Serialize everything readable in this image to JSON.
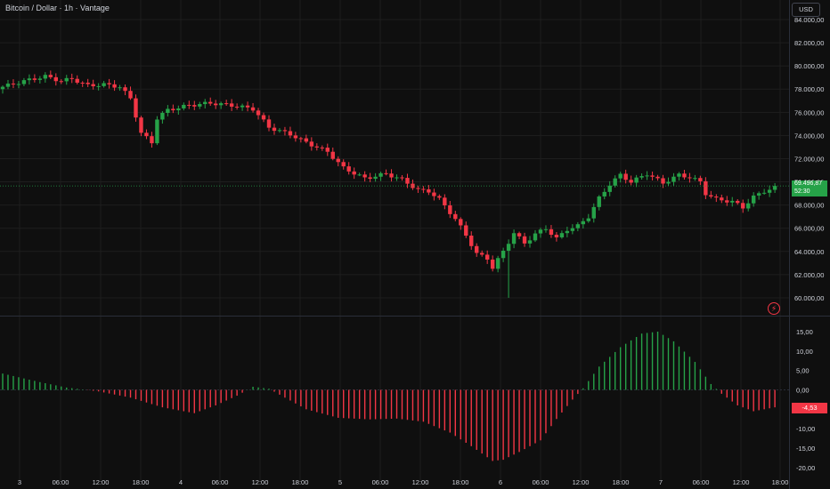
{
  "header": {
    "title": "Bitcoin / Dollar · 1h · Vantage"
  },
  "currency_button": "USD",
  "price_tag": {
    "price": "69.496,87",
    "countdown": "52:30"
  },
  "macd_tag": "-4,53",
  "flash_icon": "lightning-icon",
  "colors": {
    "up": "#26a248",
    "down": "#f23645",
    "bg": "#0f0f0f",
    "grid": "#1e1e1e",
    "text": "#d1d4dc"
  },
  "chart_data": [
    {
      "type": "candlestick",
      "title": "Bitcoin / Dollar · 1h · Vantage",
      "ylim": [
        58000,
        86000
      ],
      "y_ticks": [
        "84.000,00",
        "82.000,00",
        "80.000,00",
        "78.000,00",
        "76.000,00",
        "74.000,00",
        "72.000,00",
        "70.000,00",
        "68.000,00",
        "66.000,00",
        "64.000,00",
        "62.000,00",
        "60.000,00"
      ],
      "x_ticks": [
        "3",
        "06:00",
        "12:00",
        "18:00",
        "4",
        "06:00",
        "12:00",
        "18:00",
        "5",
        "06:00",
        "12:00",
        "18:00",
        "6",
        "06:00",
        "12:00",
        "18:00",
        "7",
        "06:00",
        "12:00",
        "18:00"
      ],
      "close_anchors": [
        [
          0,
          78200
        ],
        [
          4,
          78700
        ],
        [
          8,
          79100
        ],
        [
          11,
          78700
        ],
        [
          13,
          78900
        ],
        [
          16,
          78300
        ],
        [
          19,
          78400
        ],
        [
          22,
          78200
        ],
        [
          24,
          77200
        ],
        [
          26,
          74200
        ],
        [
          28,
          73400
        ],
        [
          29,
          75500
        ],
        [
          31,
          76200
        ],
        [
          35,
          76600
        ],
        [
          39,
          76800
        ],
        [
          43,
          76600
        ],
        [
          47,
          76300
        ],
        [
          50,
          74700
        ],
        [
          54,
          74100
        ],
        [
          57,
          73400
        ],
        [
          61,
          72600
        ],
        [
          64,
          71200
        ],
        [
          68,
          70300
        ],
        [
          72,
          70700
        ],
        [
          75,
          70200
        ],
        [
          78,
          69300
        ],
        [
          80,
          69200
        ],
        [
          82,
          68500
        ],
        [
          85,
          66800
        ],
        [
          87,
          65400
        ],
        [
          89,
          63800
        ],
        [
          91,
          63400
        ],
        [
          92,
          62600
        ],
        [
          93,
          63300
        ],
        [
          94,
          64000
        ],
        [
          96,
          65600
        ],
        [
          98,
          64700
        ],
        [
          100,
          65500
        ],
        [
          102,
          66000
        ],
        [
          104,
          65100
        ],
        [
          106,
          65900
        ],
        [
          108,
          66200
        ],
        [
          110,
          67000
        ],
        [
          112,
          68600
        ],
        [
          114,
          69800
        ],
        [
          116,
          70600
        ],
        [
          118,
          70000
        ],
        [
          121,
          70700
        ],
        [
          124,
          69900
        ],
        [
          127,
          70600
        ],
        [
          129,
          70400
        ],
        [
          131,
          70000
        ],
        [
          132,
          69000
        ],
        [
          134,
          68500
        ],
        [
          137,
          68300
        ],
        [
          139,
          67800
        ],
        [
          141,
          68700
        ],
        [
          143,
          69200
        ],
        [
          145,
          69500
        ]
      ]
    },
    {
      "type": "bar",
      "title": "",
      "ylim": [
        -21,
        17
      ],
      "y_ticks": [
        "15,00",
        "10,00",
        "5,00",
        "0,00",
        "-5,00",
        "-10,00",
        "-15,00",
        "-20,00"
      ],
      "value_anchors": [
        [
          0,
          4.2
        ],
        [
          7,
          2
        ],
        [
          12,
          0.6
        ],
        [
          18,
          -0.4
        ],
        [
          24,
          -2
        ],
        [
          30,
          -4.5
        ],
        [
          36,
          -6
        ],
        [
          40,
          -4
        ],
        [
          44,
          -1.5
        ],
        [
          47,
          0.8
        ],
        [
          50,
          0.3
        ],
        [
          53,
          -2
        ],
        [
          57,
          -5
        ],
        [
          63,
          -7.2
        ],
        [
          69,
          -7.6
        ],
        [
          74,
          -7.4
        ],
        [
          79,
          -8.2
        ],
        [
          84,
          -11
        ],
        [
          88,
          -14.5
        ],
        [
          92,
          -18.3
        ],
        [
          94,
          -18
        ],
        [
          97,
          -16
        ],
        [
          101,
          -13
        ],
        [
          104,
          -7.5
        ],
        [
          107,
          -2.5
        ],
        [
          109,
          0.4
        ],
        [
          112,
          6
        ],
        [
          116,
          11
        ],
        [
          120,
          14.5
        ],
        [
          123,
          15
        ],
        [
          126,
          12.5
        ],
        [
          130,
          7.2
        ],
        [
          133,
          1.5
        ],
        [
          135,
          -1
        ],
        [
          138,
          -4
        ],
        [
          141,
          -5.5
        ],
        [
          143,
          -5
        ],
        [
          145,
          -4.5
        ]
      ]
    }
  ]
}
